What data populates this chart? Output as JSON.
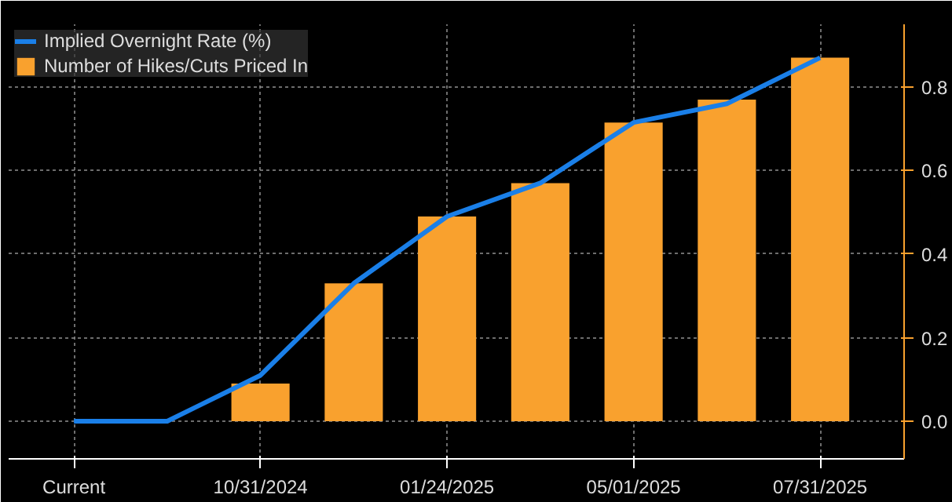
{
  "chart_data": {
    "type": "bar",
    "categories": [
      "Current",
      null,
      "10/31/2024",
      null,
      "01/24/2025",
      null,
      "05/01/2025",
      null,
      "07/31/2025"
    ],
    "series": [
      {
        "name": "Implied Overnight Rate (%)",
        "type": "line",
        "color": "#1a7fe8",
        "values": [
          0.0,
          0.0,
          0.11,
          0.33,
          0.49,
          0.57,
          0.715,
          0.76,
          0.87
        ]
      },
      {
        "name": "Number of Hikes/Cuts Priced In",
        "color": "#f9a12e",
        "values": [
          0.0,
          0.0,
          0.09,
          0.33,
          0.49,
          0.57,
          0.715,
          0.77,
          0.87
        ]
      }
    ],
    "ylim": [
      -0.09,
      0.95
    ],
    "yticks": [
      {
        "value": 0.0,
        "label": "0.0"
      },
      {
        "value": 0.2,
        "label": "0.2"
      },
      {
        "value": 0.4,
        "label": "0.4"
      },
      {
        "value": 0.6,
        "label": "0.6"
      },
      {
        "value": 0.8,
        "label": "0.8"
      }
    ],
    "grid": true,
    "legend": "top left"
  }
}
